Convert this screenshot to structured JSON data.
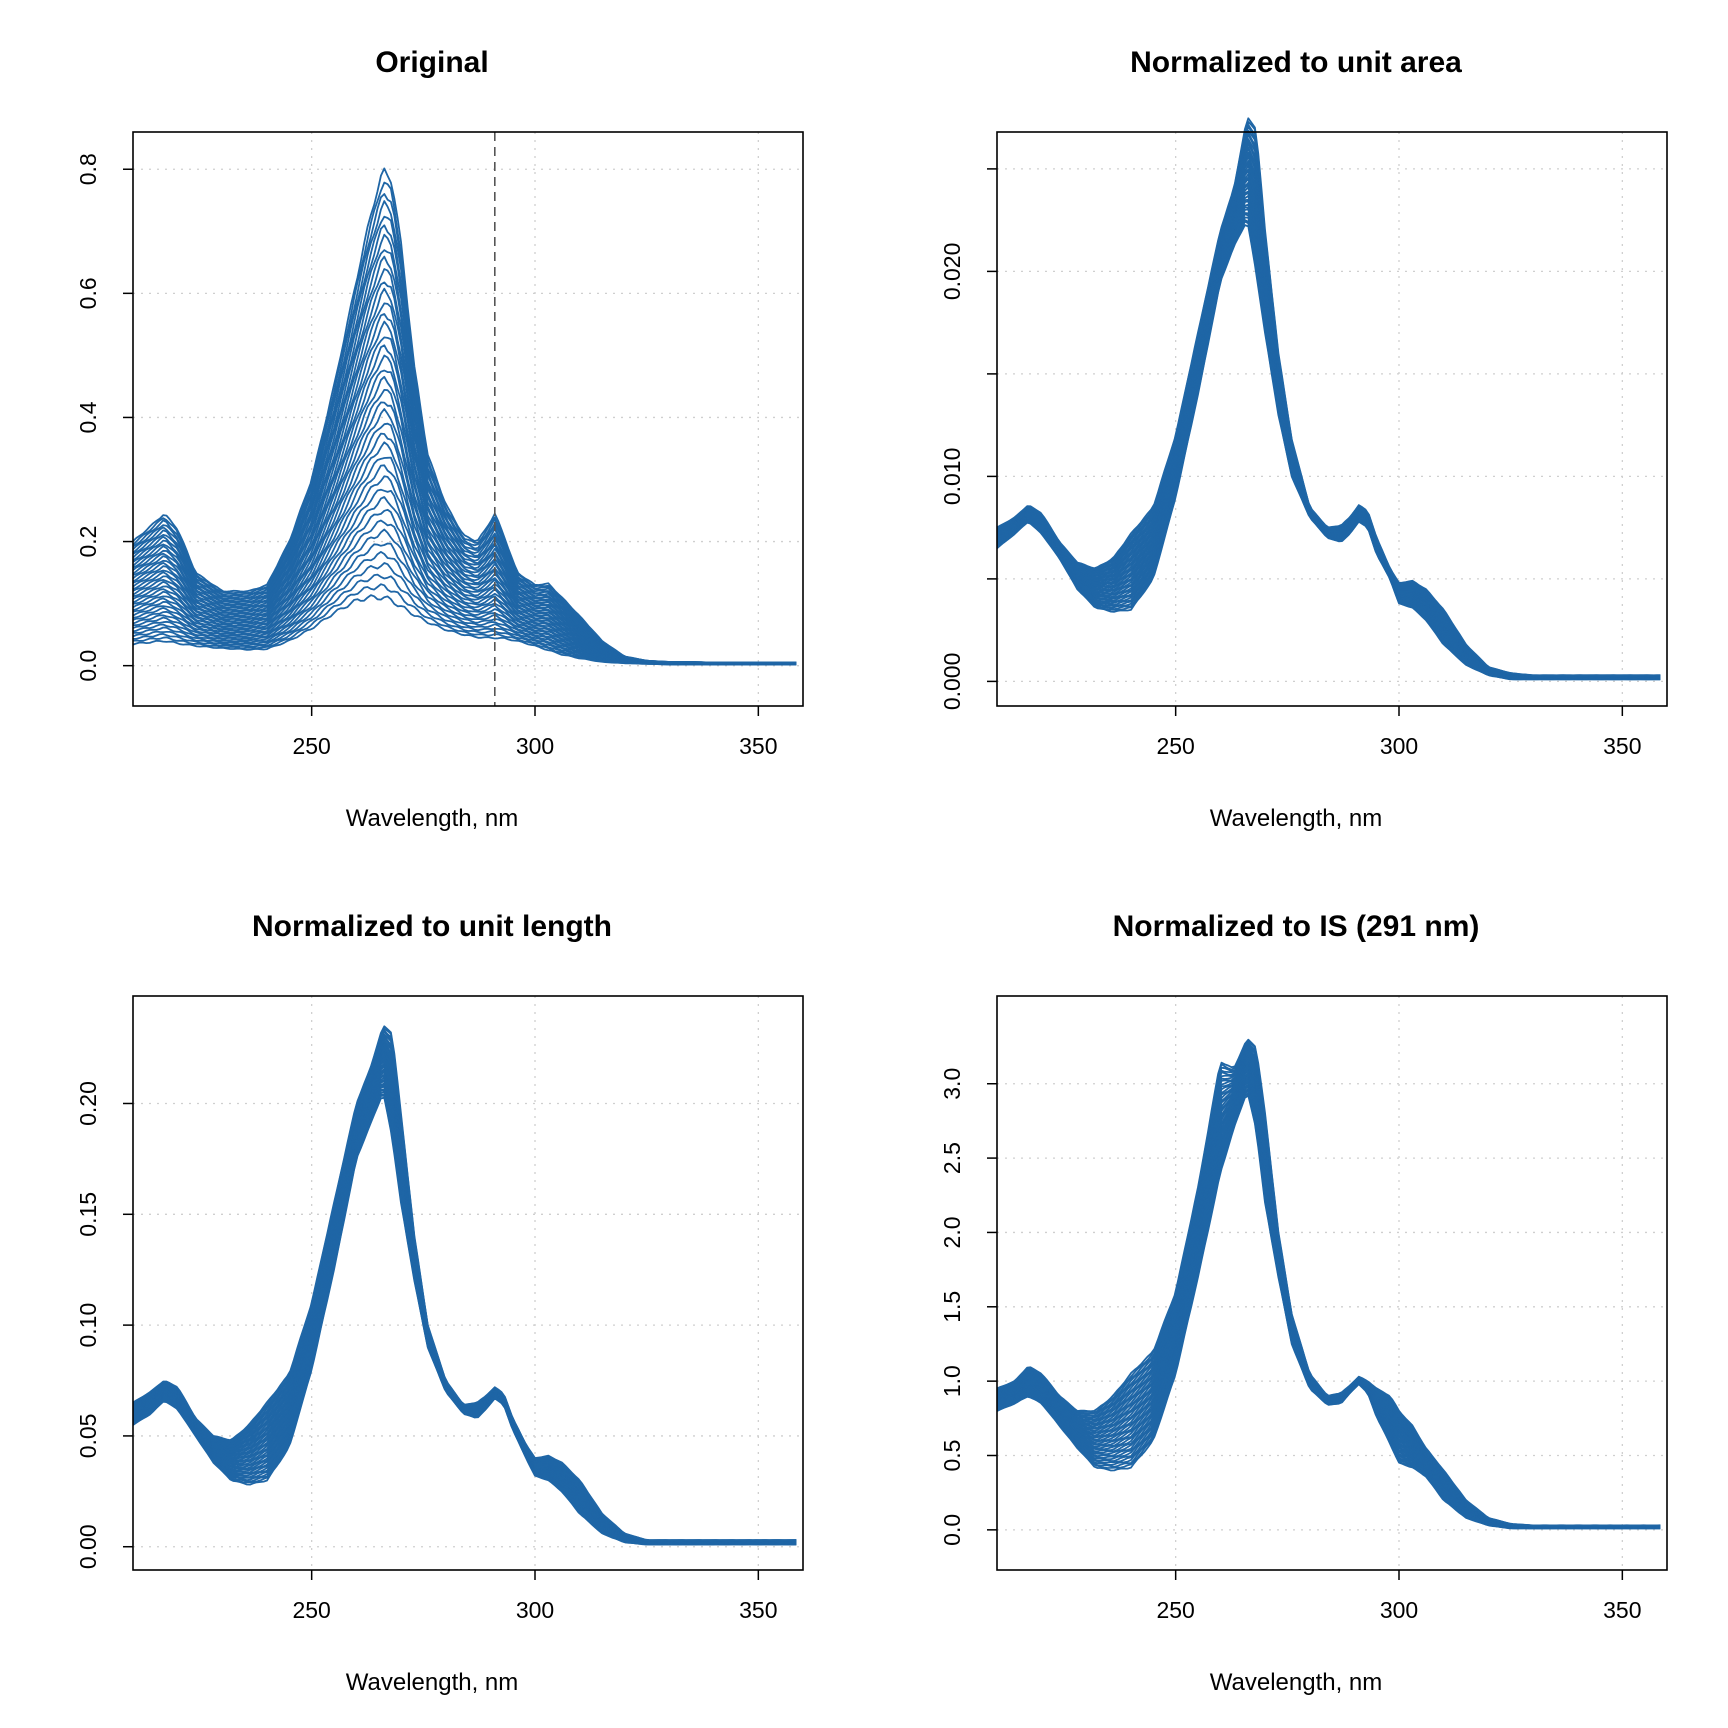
{
  "chart_data": [
    {
      "type": "line",
      "title": "Original",
      "xlabel": "Wavelength, nm",
      "ylabel": "",
      "xlim": [
        210,
        360
      ],
      "ylim": [
        -0.065,
        0.86
      ],
      "xticks": [
        250,
        300,
        350
      ],
      "xtick_labels": [
        "250",
        "300",
        "350"
      ],
      "yticks": [
        0,
        0.2,
        0.4,
        0.6,
        0.8
      ],
      "ytick_labels": [
        "0.0",
        "0.2",
        "0.4",
        "0.6",
        "0.8"
      ],
      "grid": true,
      "vline": 291,
      "profile": {
        "x": [
          210,
          214,
          217,
          220,
          224,
          230,
          236,
          240,
          245,
          250,
          255,
          260,
          263,
          266,
          268,
          270,
          273,
          276,
          280,
          284,
          287,
          289,
          291,
          293,
          296,
          300,
          303,
          306,
          310,
          315,
          320,
          325,
          330,
          335,
          340,
          345,
          350,
          355,
          359
        ],
        "y_low": [
          0.035,
          0.038,
          0.04,
          0.036,
          0.032,
          0.028,
          0.026,
          0.027,
          0.04,
          0.06,
          0.085,
          0.105,
          0.11,
          0.11,
          0.105,
          0.095,
          0.082,
          0.07,
          0.058,
          0.05,
          0.046,
          0.045,
          0.045,
          0.044,
          0.04,
          0.032,
          0.025,
          0.018,
          0.012,
          0.006,
          0.004,
          0.003,
          0.002,
          0.002,
          0.002,
          0.002,
          0.002,
          0.002,
          0.002
        ],
        "y_high": [
          0.2,
          0.225,
          0.245,
          0.22,
          0.15,
          0.12,
          0.12,
          0.13,
          0.2,
          0.3,
          0.45,
          0.62,
          0.72,
          0.8,
          0.78,
          0.68,
          0.48,
          0.34,
          0.26,
          0.21,
          0.2,
          0.22,
          0.245,
          0.21,
          0.15,
          0.13,
          0.132,
          0.11,
          0.08,
          0.04,
          0.015,
          0.008,
          0.006,
          0.006,
          0.005,
          0.005,
          0.005,
          0.005,
          0.005
        ]
      },
      "series_count": 40,
      "line_color": "#1f66a6"
    },
    {
      "type": "line",
      "title": "Normalized to unit area",
      "xlabel": "Wavelength, nm",
      "ylabel": "",
      "xlim": [
        210,
        360
      ],
      "ylim": [
        -0.0012,
        0.0268
      ],
      "xticks": [
        250,
        300,
        350
      ],
      "xtick_labels": [
        "250",
        "300",
        "350"
      ],
      "yticks": [
        0,
        0.005,
        0.01,
        0.015,
        0.02,
        0.025
      ],
      "ytick_labels": [
        "0.000",
        "",
        "0.010",
        "",
        "0.020",
        ""
      ],
      "grid": true,
      "profile": {
        "x": [
          210,
          214,
          217,
          220,
          224,
          228,
          232,
          236,
          240,
          245,
          250,
          255,
          260,
          263,
          266,
          268,
          270,
          273,
          276,
          280,
          284,
          287,
          289,
          291,
          293,
          295,
          298,
          300,
          303,
          306,
          310,
          315,
          320,
          325,
          330,
          335,
          340,
          345,
          350,
          355,
          359
        ],
        "y_low": [
          0.0065,
          0.0072,
          0.0078,
          0.0072,
          0.006,
          0.0045,
          0.0036,
          0.0034,
          0.0035,
          0.005,
          0.009,
          0.014,
          0.0195,
          0.0212,
          0.0225,
          0.02,
          0.017,
          0.013,
          0.01,
          0.008,
          0.007,
          0.0068,
          0.0072,
          0.0078,
          0.0075,
          0.0062,
          0.005,
          0.0038,
          0.0036,
          0.003,
          0.0018,
          0.0008,
          0.0003,
          0.0001,
          0.0001,
          0.0001,
          0.0001,
          0.0001,
          0.0001,
          0.0001,
          0.0001
        ],
        "y_high": [
          0.0075,
          0.008,
          0.0086,
          0.0082,
          0.0068,
          0.0058,
          0.0055,
          0.006,
          0.0072,
          0.0085,
          0.012,
          0.017,
          0.022,
          0.024,
          0.0275,
          0.027,
          0.022,
          0.016,
          0.0118,
          0.0085,
          0.0075,
          0.0076,
          0.008,
          0.0086,
          0.0083,
          0.007,
          0.0055,
          0.0048,
          0.0049,
          0.0045,
          0.0035,
          0.0018,
          0.0007,
          0.0004,
          0.0003,
          0.0003,
          0.0003,
          0.0003,
          0.0003,
          0.0003,
          0.0003
        ]
      },
      "series_count": 40,
      "line_color": "#1f66a6"
    },
    {
      "type": "line",
      "title": "Normalized to unit length",
      "xlabel": "Wavelength, nm",
      "ylabel": "",
      "xlim": [
        210,
        360
      ],
      "ylim": [
        -0.0105,
        0.2485
      ],
      "xticks": [
        250,
        300,
        350
      ],
      "xtick_labels": [
        "250",
        "300",
        "350"
      ],
      "yticks": [
        0,
        0.05,
        0.1,
        0.15,
        0.2
      ],
      "ytick_labels": [
        "0.00",
        "0.05",
        "0.10",
        "0.15",
        "0.20"
      ],
      "grid": true,
      "profile": {
        "x": [
          210,
          214,
          217,
          220,
          224,
          228,
          232,
          236,
          240,
          245,
          250,
          255,
          260,
          263,
          266,
          268,
          270,
          273,
          276,
          280,
          284,
          287,
          289,
          291,
          293,
          295,
          298,
          300,
          303,
          306,
          310,
          315,
          320,
          325,
          330,
          335,
          340,
          345,
          350,
          355,
          359
        ],
        "y_low": [
          0.055,
          0.06,
          0.066,
          0.062,
          0.05,
          0.038,
          0.03,
          0.028,
          0.03,
          0.045,
          0.08,
          0.125,
          0.175,
          0.19,
          0.205,
          0.185,
          0.155,
          0.12,
          0.09,
          0.07,
          0.06,
          0.058,
          0.062,
          0.067,
          0.064,
          0.053,
          0.04,
          0.032,
          0.03,
          0.025,
          0.015,
          0.006,
          0.002,
          0.001,
          0.001,
          0.001,
          0.001,
          0.001,
          0.001,
          0.001,
          0.001
        ],
        "y_high": [
          0.065,
          0.07,
          0.075,
          0.072,
          0.058,
          0.05,
          0.048,
          0.055,
          0.065,
          0.078,
          0.11,
          0.155,
          0.2,
          0.215,
          0.235,
          0.232,
          0.195,
          0.14,
          0.1,
          0.075,
          0.064,
          0.065,
          0.068,
          0.072,
          0.069,
          0.058,
          0.046,
          0.04,
          0.041,
          0.038,
          0.03,
          0.015,
          0.006,
          0.003,
          0.003,
          0.003,
          0.003,
          0.003,
          0.003,
          0.003,
          0.003
        ]
      },
      "series_count": 40,
      "line_color": "#1f66a6"
    },
    {
      "type": "line",
      "title": "Normalized to IS (291 nm)",
      "xlabel": "Wavelength, nm",
      "ylabel": "",
      "xlim": [
        210,
        360
      ],
      "ylim": [
        -0.27,
        3.59
      ],
      "xticks": [
        250,
        300,
        350
      ],
      "xtick_labels": [
        "250",
        "300",
        "350"
      ],
      "yticks": [
        0,
        0.5,
        1.0,
        1.5,
        2.0,
        2.5,
        3.0
      ],
      "ytick_labels": [
        "0.0",
        "0.5",
        "1.0",
        "1.5",
        "2.0",
        "2.5",
        "3.0"
      ],
      "grid": true,
      "profile": {
        "x": [
          210,
          214,
          217,
          220,
          224,
          228,
          232,
          236,
          240,
          245,
          250,
          255,
          260,
          263,
          266,
          268,
          270,
          273,
          276,
          280,
          284,
          287,
          289,
          291,
          293,
          295,
          298,
          300,
          303,
          306,
          310,
          315,
          320,
          325,
          330,
          335,
          340,
          345,
          350,
          355,
          359
        ],
        "y_low": [
          0.8,
          0.85,
          0.9,
          0.85,
          0.7,
          0.55,
          0.42,
          0.4,
          0.42,
          0.6,
          1.05,
          1.7,
          2.4,
          2.7,
          2.95,
          2.7,
          2.2,
          1.7,
          1.25,
          0.95,
          0.84,
          0.85,
          0.92,
          0.98,
          0.92,
          0.76,
          0.58,
          0.45,
          0.42,
          0.36,
          0.2,
          0.08,
          0.03,
          0.01,
          0.01,
          0.01,
          0.01,
          0.01,
          0.01,
          0.01,
          0.01
        ],
        "y_high": [
          0.95,
          1.0,
          1.1,
          1.05,
          0.9,
          0.8,
          0.8,
          0.9,
          1.05,
          1.2,
          1.6,
          2.3,
          3.15,
          3.1,
          3.3,
          3.25,
          2.8,
          2.0,
          1.45,
          1.05,
          0.9,
          0.92,
          0.97,
          1.03,
          1.0,
          0.95,
          0.9,
          0.8,
          0.7,
          0.55,
          0.4,
          0.2,
          0.08,
          0.04,
          0.03,
          0.03,
          0.03,
          0.03,
          0.03,
          0.03,
          0.03
        ]
      },
      "series_count": 40,
      "line_color": "#1f66a6"
    }
  ]
}
